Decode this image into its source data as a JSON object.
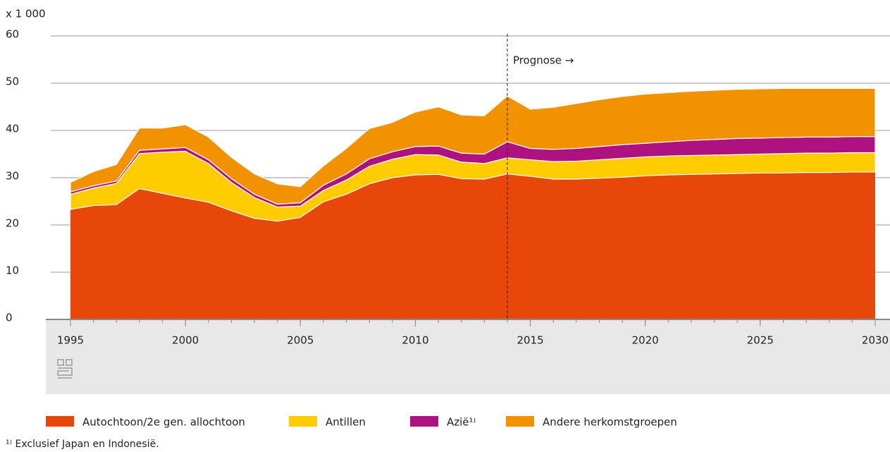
{
  "chart_data": {
    "type": "stacked-area",
    "y_axis_label": "x 1 000",
    "x": [
      1995,
      1996,
      1997,
      1998,
      1999,
      2000,
      2001,
      2002,
      2003,
      2004,
      2005,
      2006,
      2007,
      2008,
      2009,
      2010,
      2011,
      2012,
      2013,
      2014,
      2015,
      2016,
      2017,
      2018,
      2019,
      2020,
      2021,
      2022,
      2023,
      2024,
      2025,
      2026,
      2027,
      2028,
      2029,
      2030
    ],
    "series": [
      {
        "name": "Autochtoon/2e gen. allochtoon",
        "color": "#e8470a",
        "values": [
          23.3,
          24.1,
          24.3,
          27.7,
          26.7,
          25.7,
          24.8,
          23.0,
          21.4,
          20.8,
          21.6,
          24.9,
          26.5,
          28.7,
          30.0,
          30.6,
          30.7,
          29.8,
          29.7,
          30.8,
          30.3,
          29.7,
          29.7,
          29.9,
          30.1,
          30.4,
          30.6,
          30.7,
          30.8,
          30.9,
          31.0,
          31.0,
          31.1,
          31.1,
          31.2,
          31.2
        ]
      },
      {
        "name": "Antillen",
        "color": "#ffcc00",
        "values": [
          3.2,
          3.7,
          4.5,
          7.4,
          8.7,
          9.9,
          8.2,
          6.0,
          4.4,
          3.0,
          2.4,
          2.4,
          3.0,
          3.7,
          3.9,
          4.3,
          4.1,
          3.5,
          3.3,
          3.4,
          3.5,
          3.7,
          3.8,
          3.9,
          4.0,
          4.0,
          4.0,
          4.0,
          4.0,
          4.0,
          4.0,
          4.1,
          4.1,
          4.1,
          4.1,
          4.1
        ]
      },
      {
        "name": "Azië¹⁾",
        "color": "#ae1280",
        "values": [
          0.5,
          0.5,
          0.5,
          0.7,
          0.7,
          0.8,
          0.8,
          0.8,
          0.7,
          0.6,
          0.7,
          1.1,
          1.3,
          1.6,
          1.6,
          1.7,
          1.9,
          1.9,
          2.0,
          3.4,
          2.4,
          2.6,
          2.7,
          2.8,
          2.9,
          2.9,
          3.0,
          3.2,
          3.3,
          3.4,
          3.4,
          3.4,
          3.4,
          3.4,
          3.4,
          3.4
        ]
      },
      {
        "name": "Andere herkomstgroepen",
        "color": "#f39200",
        "values": [
          2.0,
          3.0,
          3.5,
          4.7,
          4.4,
          4.8,
          4.8,
          4.5,
          4.3,
          4.3,
          3.4,
          4.1,
          5.4,
          6.4,
          6.2,
          7.3,
          8.3,
          8.1,
          8.1,
          9.7,
          8.3,
          8.9,
          9.5,
          9.9,
          10.2,
          10.4,
          10.4,
          10.4,
          10.4,
          10.4,
          10.4,
          10.4,
          10.3,
          10.3,
          10.2,
          10.2
        ]
      }
    ],
    "xlim": [
      1995,
      2030
    ],
    "xticks": [
      1995,
      2000,
      2005,
      2010,
      2015,
      2020,
      2025,
      2030
    ],
    "ylim": [
      0,
      60
    ],
    "yticks": [
      0,
      10,
      20,
      30,
      40,
      50,
      60
    ],
    "grid": true,
    "annotation": {
      "text": "Prognose →",
      "x": 2014
    },
    "footnote": "¹⁾ Exclusief Japan en Indonesië."
  }
}
